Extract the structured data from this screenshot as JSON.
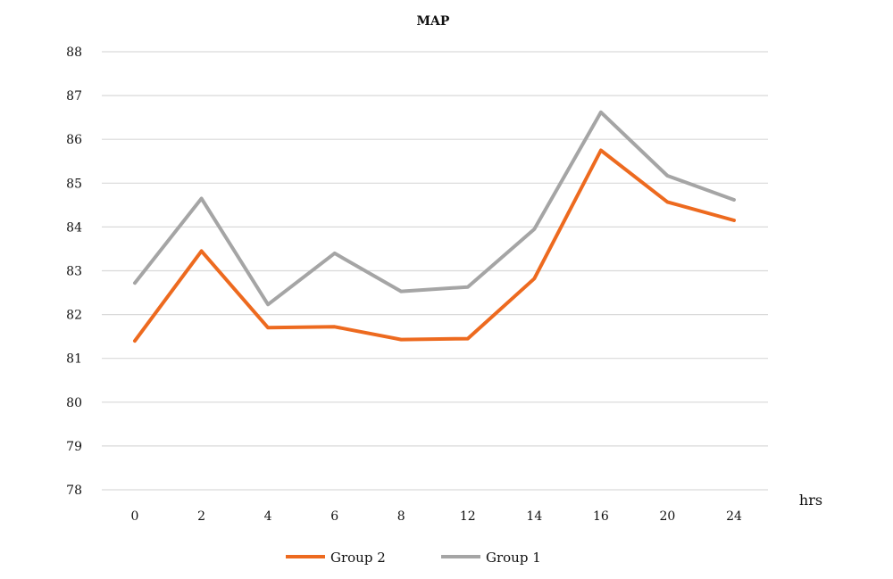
{
  "chart_data": {
    "type": "line",
    "title": "MAP",
    "xlabel": "hrs",
    "ylabel": "",
    "categories": [
      "0",
      "2",
      "4",
      "6",
      "8",
      "12",
      "14",
      "16",
      "20",
      "24"
    ],
    "ylim": [
      78,
      88
    ],
    "yticks": [
      78,
      79,
      80,
      81,
      82,
      83,
      84,
      85,
      86,
      87,
      88
    ],
    "grid": true,
    "legend_position": "bottom",
    "series": [
      {
        "name": "Group 2",
        "color": "#ED6A1F",
        "values": [
          81.4,
          83.45,
          81.7,
          81.72,
          81.43,
          81.45,
          82.82,
          85.75,
          84.57,
          84.15
        ]
      },
      {
        "name": "Group 1",
        "color": "#A5A5A5",
        "values": [
          82.72,
          84.65,
          82.23,
          83.4,
          82.53,
          82.63,
          83.95,
          86.62,
          85.17,
          84.62
        ]
      }
    ]
  }
}
